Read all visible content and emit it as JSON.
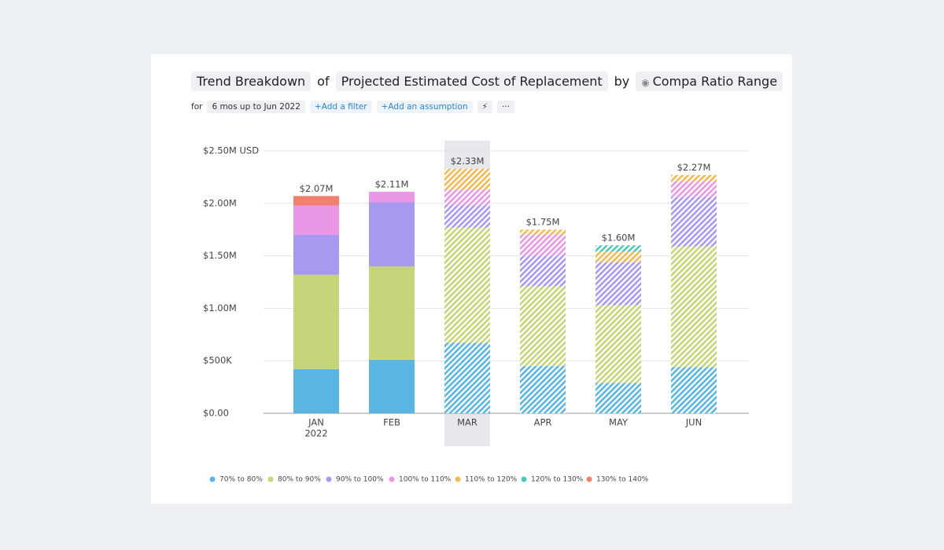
{
  "header": {
    "title_parts": [
      "Trend Breakdown",
      "of",
      "Projected Estimated Cost of Replacement",
      "by",
      "Compa Ratio Range"
    ],
    "filter_label": "for",
    "period": "6 mos up to Jun 2022",
    "actions": [
      "Add a filter",
      "Add an assumption"
    ]
  },
  "chart_data": {
    "type": "stacked_bar",
    "categories": [
      "JAN",
      "FEB",
      "MAR",
      "APR",
      "MAY",
      "JUN"
    ],
    "year_label": "2022",
    "series": [
      {
        "name": "70% to 80%",
        "color": "#5bb5e3",
        "values": [
          420000,
          510000,
          670000,
          450000,
          290000,
          440000
        ]
      },
      {
        "name": "80% to 90%",
        "color": "#c5d57a",
        "values": [
          900000,
          890000,
          1100000,
          760000,
          740000,
          1150000
        ]
      },
      {
        "name": "90% to 100%",
        "color": "#a899f0",
        "values": [
          380000,
          610000,
          210000,
          290000,
          410000,
          470000
        ]
      },
      {
        "name": "100% to 110%",
        "color": "#e996e6",
        "values": [
          280000,
          100000,
          150000,
          200000,
          null,
          150000
        ]
      },
      {
        "name": "110% to 120%",
        "color": "#f2b955",
        "values": [
          null,
          null,
          200000,
          50000,
          100000,
          60000
        ]
      },
      {
        "name": "120% to 130%",
        "color": "#4fc9b7",
        "values": [
          null,
          null,
          null,
          null,
          60000,
          null
        ]
      },
      {
        "name": "130% to 140%",
        "color": "#f0806e",
        "values": [
          90000,
          null,
          null,
          null,
          null,
          null
        ]
      }
    ],
    "totals": {
      "values": [
        2070000,
        2110000,
        2330000,
        1750000,
        1600000,
        2270000
      ],
      "value_labels": [
        "$2.07M",
        "$2.11M",
        "$2.33M",
        "$1.75M",
        "$1.60M",
        "$2.27M"
      ]
    },
    "hatched": [
      false,
      false,
      true,
      true,
      true,
      true
    ],
    "highlight_index": 2,
    "ylim": [
      0,
      2500000
    ],
    "yticks": [
      {
        "value": 0,
        "label": "$0.00"
      },
      {
        "value": 500000,
        "label": "$500K"
      },
      {
        "value": 1000000,
        "label": "$1.00M"
      },
      {
        "value": 1500000,
        "label": "$1.50M"
      },
      {
        "value": 2000000,
        "label": "$2.00M"
      },
      {
        "value": 2500000,
        "label": "$2.50M USD"
      }
    ],
    "grid": true
  }
}
